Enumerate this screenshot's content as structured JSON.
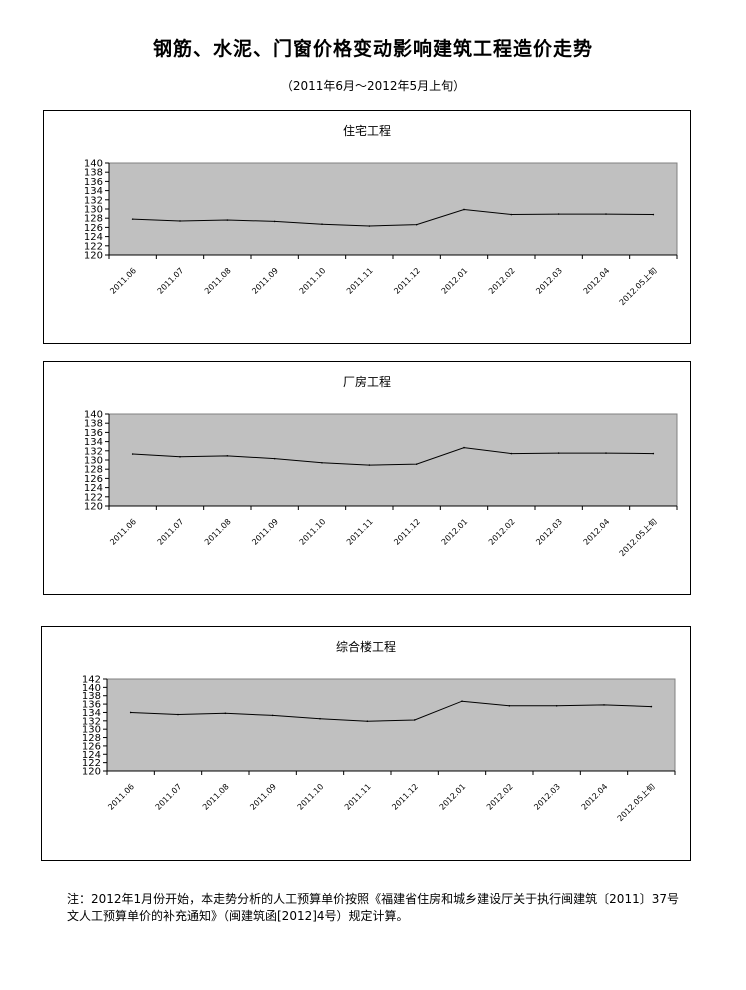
{
  "title": "钢筋、水泥、门窗价格变动影响建筑工程造价走势",
  "subtitle": "（2011年6月～2012年5月上旬）",
  "note": {
    "line1": "注：2012年1月份开始，本走势分析的人工预算单价按照《福建省住房和城乡建设厅关于执行闽建筑〔2011〕37号",
    "line2": "文人工预算单价的补充通知》（闽建筑函[2012]4号）规定计算。"
  },
  "colors": {
    "plot_bg": "#c0c0c0",
    "line": "#000000",
    "border": "#000000"
  },
  "chart_data": [
    {
      "type": "line",
      "title": "住宅工程",
      "categories": [
        "2011.06",
        "2011.07",
        "2011.08",
        "2011.09",
        "2011.10",
        "2011.11",
        "2011.12",
        "2012.01",
        "2012.02",
        "2012.03",
        "2012.04",
        "2012.05上旬"
      ],
      "values": [
        127.8,
        127.4,
        127.6,
        127.3,
        126.7,
        126.3,
        126.6,
        129.9,
        128.8,
        128.9,
        128.9,
        128.8
      ],
      "ylim": [
        120,
        140
      ],
      "yticks": [
        120,
        122,
        124,
        126,
        128,
        130,
        132,
        134,
        136,
        138,
        140
      ],
      "grid": false,
      "legend": "none"
    },
    {
      "type": "line",
      "title": "厂房工程",
      "categories": [
        "2011.06",
        "2011.07",
        "2011.08",
        "2011.09",
        "2011.10",
        "2011.11",
        "2011.12",
        "2012.01",
        "2012.02",
        "2012.03",
        "2012.04",
        "2012.05上旬"
      ],
      "values": [
        131.3,
        130.7,
        130.9,
        130.3,
        129.4,
        128.9,
        129.1,
        132.7,
        131.4,
        131.5,
        131.5,
        131.4
      ],
      "ylim": [
        120,
        140
      ],
      "yticks": [
        120,
        122,
        124,
        126,
        128,
        130,
        132,
        134,
        136,
        138,
        140
      ],
      "grid": false,
      "legend": "none"
    },
    {
      "type": "line",
      "title": "综合楼工程",
      "categories": [
        "2011.06",
        "2011.07",
        "2011.08",
        "2011.09",
        "2011.10",
        "2011.11",
        "2011.12",
        "2012.01",
        "2012.02",
        "2012.03",
        "2012.04",
        "2012.05上旬"
      ],
      "values": [
        134.0,
        133.5,
        133.8,
        133.3,
        132.5,
        131.9,
        132.2,
        136.7,
        135.6,
        135.6,
        135.8,
        135.4
      ],
      "ylim": [
        120,
        142
      ],
      "yticks": [
        120,
        122,
        124,
        126,
        128,
        130,
        132,
        134,
        136,
        138,
        140,
        142
      ],
      "grid": false,
      "legend": "none"
    }
  ]
}
